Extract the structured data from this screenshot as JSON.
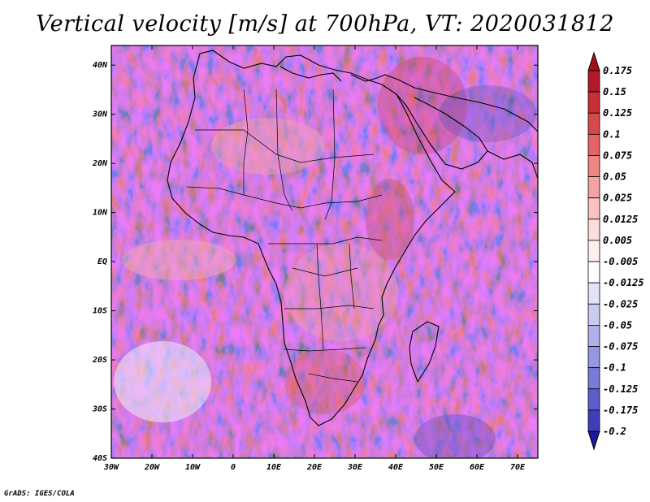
{
  "title": "Vertical velocity [m/s] at 700hPa, VT: 2020031812",
  "credit": "GrADS: IGES/COLA",
  "map": {
    "lat_labels": [
      "40N",
      "30N",
      "20N",
      "10N",
      "EQ",
      "10S",
      "20S",
      "30S",
      "40S"
    ],
    "lat_values": [
      40,
      30,
      20,
      10,
      0,
      -10,
      -20,
      -30,
      -40
    ],
    "lon_labels": [
      "30W",
      "20W",
      "10W",
      "0",
      "10E",
      "20E",
      "30E",
      "40E",
      "50E",
      "60E",
      "70E"
    ],
    "lon_values": [
      -30,
      -20,
      -10,
      0,
      10,
      20,
      30,
      40,
      50,
      60,
      70
    ],
    "lat_range": [
      -40,
      44
    ],
    "lon_range": [
      -30,
      75
    ],
    "variable": "Vertical velocity",
    "level": "700hPa",
    "units": "m/s",
    "valid_time": "2020031812"
  },
  "colorbar": {
    "levels": [
      {
        "label": "0.175",
        "color": "#b2182b"
      },
      {
        "label": "0.15",
        "color": "#c62f36"
      },
      {
        "label": "0.125",
        "color": "#d6494b"
      },
      {
        "label": "0.1",
        "color": "#e26565"
      },
      {
        "label": "0.075",
        "color": "#ec8583"
      },
      {
        "label": "0.05",
        "color": "#f3a4a2"
      },
      {
        "label": "0.025",
        "color": "#f8c2c0"
      },
      {
        "label": "0.0125",
        "color": "#fbdedd"
      },
      {
        "label": "0.005",
        "color": "#fdf0ef"
      },
      {
        "label": "-0.005",
        "color": "#ffffff"
      },
      {
        "label": "-0.0125",
        "color": "#e2e2f8"
      },
      {
        "label": "-0.025",
        "color": "#cbcbf2"
      },
      {
        "label": "-0.05",
        "color": "#b1b1ec"
      },
      {
        "label": "-0.075",
        "color": "#9696e3"
      },
      {
        "label": "-0.1",
        "color": "#7a7ad8"
      },
      {
        "label": "-0.125",
        "color": "#5d5dcb"
      },
      {
        "label": "-0.175",
        "color": "#3e3ebb"
      },
      {
        "label": "-0.2",
        "color": "#2020a8"
      }
    ],
    "top_arrow_color": "#a50f15",
    "bottom_arrow_color": "#1a1a9a"
  }
}
